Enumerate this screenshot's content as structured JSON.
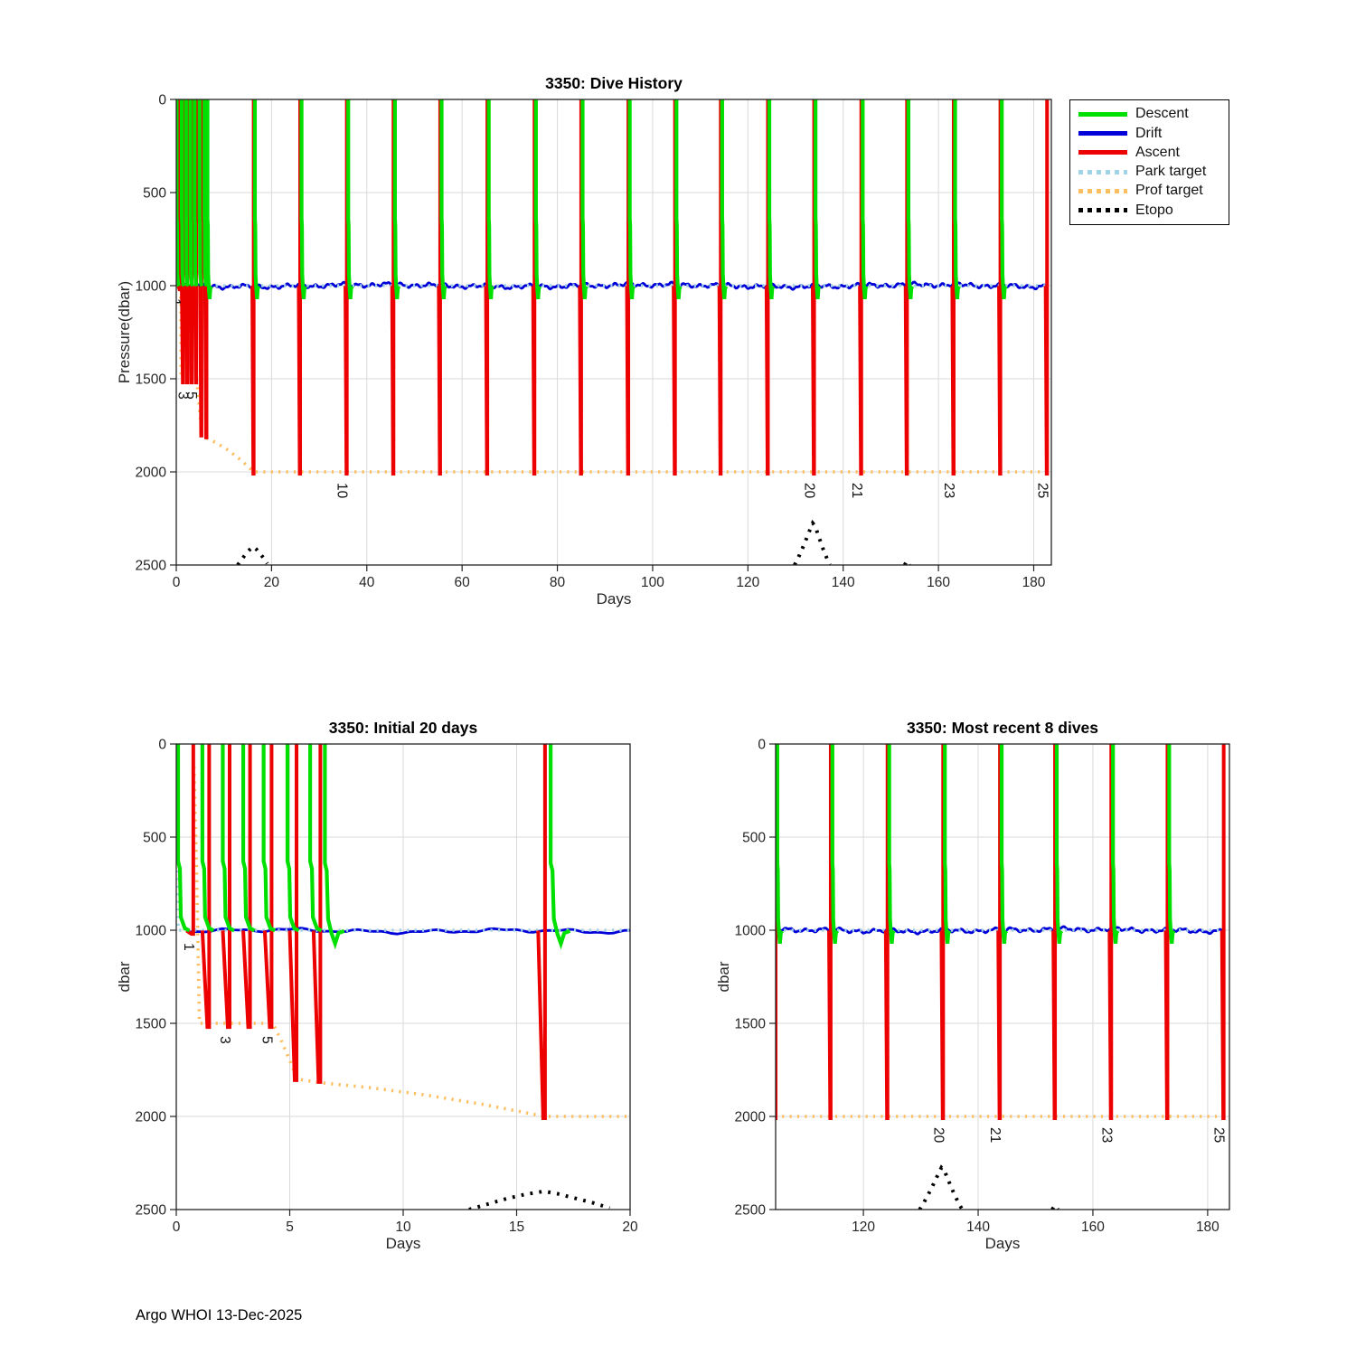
{
  "figure": {
    "footer": "Argo WHOI 13-Dec-2025"
  },
  "colors": {
    "descent": "#00e000",
    "drift": "#0000d8",
    "ascent": "#ed0000",
    "park": "#a0d3e8",
    "prof": "#fcbe5e",
    "etopo": "#000000",
    "grid": "#dadada",
    "axis": "#232323",
    "tick_text": "#262626",
    "label_text": "#111111"
  },
  "legend": {
    "items": [
      {
        "label": "Descent",
        "style": "solid",
        "color_key": "descent"
      },
      {
        "label": "Drift",
        "style": "solid",
        "color_key": "drift"
      },
      {
        "label": "Ascent",
        "style": "solid",
        "color_key": "ascent"
      },
      {
        "label": "Park target",
        "style": "dotted",
        "color_key": "park"
      },
      {
        "label": "Prof target",
        "style": "dotted",
        "color_key": "prof"
      },
      {
        "label": "Etopo",
        "style": "dotted",
        "color_key": "etopo"
      }
    ]
  },
  "chart_data": {
    "type": "line",
    "units": {
      "x": "Days",
      "y": "dbar"
    },
    "shared": {
      "park_target": [
        [
          0.08,
          190
        ],
        [
          0.08,
          1000
        ],
        [
          182.9,
          1000
        ]
      ],
      "prof_target": [
        [
          0.78,
          120
        ],
        [
          0.9,
          700
        ],
        [
          1.02,
          1500
        ],
        [
          4.25,
          1500
        ],
        [
          4.6,
          1585
        ],
        [
          5.0,
          1700
        ],
        [
          5.35,
          1800
        ],
        [
          6.0,
          1812
        ],
        [
          6.6,
          1822
        ],
        [
          8.5,
          1845
        ],
        [
          11,
          1885
        ],
        [
          13.5,
          1935
        ],
        [
          15.2,
          1975
        ],
        [
          16.2,
          2000
        ],
        [
          183.7,
          2000
        ]
      ],
      "etopo": [
        [
          [
            12.9,
            2500
          ],
          [
            13.8,
            2468
          ],
          [
            14.6,
            2440
          ],
          [
            15.4,
            2418
          ],
          [
            16.2,
            2402
          ],
          [
            16.8,
            2415
          ],
          [
            17.6,
            2440
          ],
          [
            18.4,
            2465
          ],
          [
            19.1,
            2492
          ]
        ],
        [
          [
            129.8,
            2500
          ],
          [
            130.8,
            2448
          ],
          [
            131.8,
            2390
          ],
          [
            132.8,
            2325
          ],
          [
            133.6,
            2275
          ],
          [
            134.1,
            2290
          ],
          [
            134.9,
            2350
          ],
          [
            135.8,
            2415
          ],
          [
            136.7,
            2472
          ],
          [
            137.2,
            2498
          ]
        ],
        [
          [
            152.9,
            2500
          ],
          [
            153.4,
            2478
          ],
          [
            153.9,
            2500
          ]
        ]
      ],
      "drift": {
        "start": 0.5,
        "end": 182.8,
        "depth": 1000,
        "amplitude": 12
      },
      "dives": [
        {
          "n": 1,
          "descent_day": 0.08,
          "ascent_day": 0.75,
          "profile_dbar": 1020,
          "label": "1"
        },
        {
          "n": 2,
          "descent_day": 1.15,
          "ascent_day": 1.45,
          "profile_dbar": 1520
        },
        {
          "n": 3,
          "descent_day": 2.05,
          "ascent_day": 2.35,
          "profile_dbar": 1520,
          "label": "3"
        },
        {
          "n": 4,
          "descent_day": 2.95,
          "ascent_day": 3.25,
          "profile_dbar": 1520
        },
        {
          "n": 5,
          "descent_day": 3.85,
          "ascent_day": 4.2,
          "profile_dbar": 1520,
          "label": "5"
        },
        {
          "n": 6,
          "descent_day": 4.9,
          "ascent_day": 5.3,
          "profile_dbar": 1805
        },
        {
          "n": 7,
          "descent_day": 5.9,
          "ascent_day": 6.35,
          "profile_dbar": 1815
        },
        {
          "n": 8,
          "descent_day": 6.55,
          "ascent_day": 16.25,
          "profile_dbar": 2010
        },
        {
          "n": 9,
          "descent_day": 16.5,
          "ascent_day": 26.0,
          "profile_dbar": 2010
        },
        {
          "n": 10,
          "descent_day": 26.3,
          "ascent_day": 35.8,
          "profile_dbar": 2010,
          "label": "10"
        },
        {
          "n": 11,
          "descent_day": 36.1,
          "ascent_day": 45.6,
          "profile_dbar": 2010
        },
        {
          "n": 12,
          "descent_day": 45.9,
          "ascent_day": 55.4,
          "profile_dbar": 2010
        },
        {
          "n": 13,
          "descent_day": 55.7,
          "ascent_day": 65.3,
          "profile_dbar": 2010
        },
        {
          "n": 14,
          "descent_day": 65.6,
          "ascent_day": 75.2,
          "profile_dbar": 2010
        },
        {
          "n": 15,
          "descent_day": 75.5,
          "ascent_day": 85.0,
          "profile_dbar": 2010
        },
        {
          "n": 16,
          "descent_day": 85.3,
          "ascent_day": 94.9,
          "profile_dbar": 2010
        },
        {
          "n": 17,
          "descent_day": 95.2,
          "ascent_day": 104.7,
          "profile_dbar": 2010
        },
        {
          "n": 18,
          "descent_day": 105.0,
          "ascent_day": 114.3,
          "profile_dbar": 2010
        },
        {
          "n": 19,
          "descent_day": 114.6,
          "ascent_day": 124.2,
          "profile_dbar": 2010
        },
        {
          "n": 20,
          "descent_day": 124.5,
          "ascent_day": 133.9,
          "profile_dbar": 2010,
          "label": "20"
        },
        {
          "n": 21,
          "descent_day": 134.2,
          "ascent_day": 143.8,
          "profile_dbar": 2010,
          "label": "21"
        },
        {
          "n": 22,
          "descent_day": 144.1,
          "ascent_day": 153.4,
          "profile_dbar": 2010
        },
        {
          "n": 23,
          "descent_day": 153.7,
          "ascent_day": 163.2,
          "profile_dbar": 2010,
          "label": "23"
        },
        {
          "n": 24,
          "descent_day": 163.5,
          "ascent_day": 173.0,
          "profile_dbar": 2010
        },
        {
          "n": 25,
          "descent_day": 173.3,
          "ascent_day": 182.8,
          "profile_dbar": 2010,
          "label": "25"
        }
      ]
    },
    "plots": [
      {
        "key": "dive_history",
        "title": "3350: Dive History",
        "xlabel": "Days",
        "ylabel": "Pressure(dbar)",
        "xlim": [
          0,
          183.7
        ],
        "ylim": [
          0,
          2500
        ],
        "xticks": [
          0,
          20,
          40,
          60,
          80,
          100,
          120,
          140,
          160,
          180
        ],
        "yticks": [
          0,
          500,
          1000,
          1500,
          2000,
          2500
        ],
        "grid": true,
        "legend_position": "outside-right"
      },
      {
        "key": "initial20",
        "title": "3350: Initial 20 days",
        "xlabel": "Days",
        "ylabel": "dbar",
        "xlim": [
          0,
          20
        ],
        "ylim": [
          0,
          2500
        ],
        "xticks": [
          0,
          5,
          10,
          15,
          20
        ],
        "yticks": [
          0,
          500,
          1000,
          1500,
          2000,
          2500
        ],
        "grid": true
      },
      {
        "key": "recent8",
        "title": "3350: Most recent 8 dives",
        "xlabel": "Days",
        "ylabel": "dbar",
        "xlim": [
          104.7,
          183.8
        ],
        "ylim": [
          0,
          2500
        ],
        "xticks": [
          120,
          140,
          160,
          180
        ],
        "yticks": [
          0,
          500,
          1000,
          1500,
          2000,
          2500
        ],
        "grid": true
      }
    ]
  }
}
